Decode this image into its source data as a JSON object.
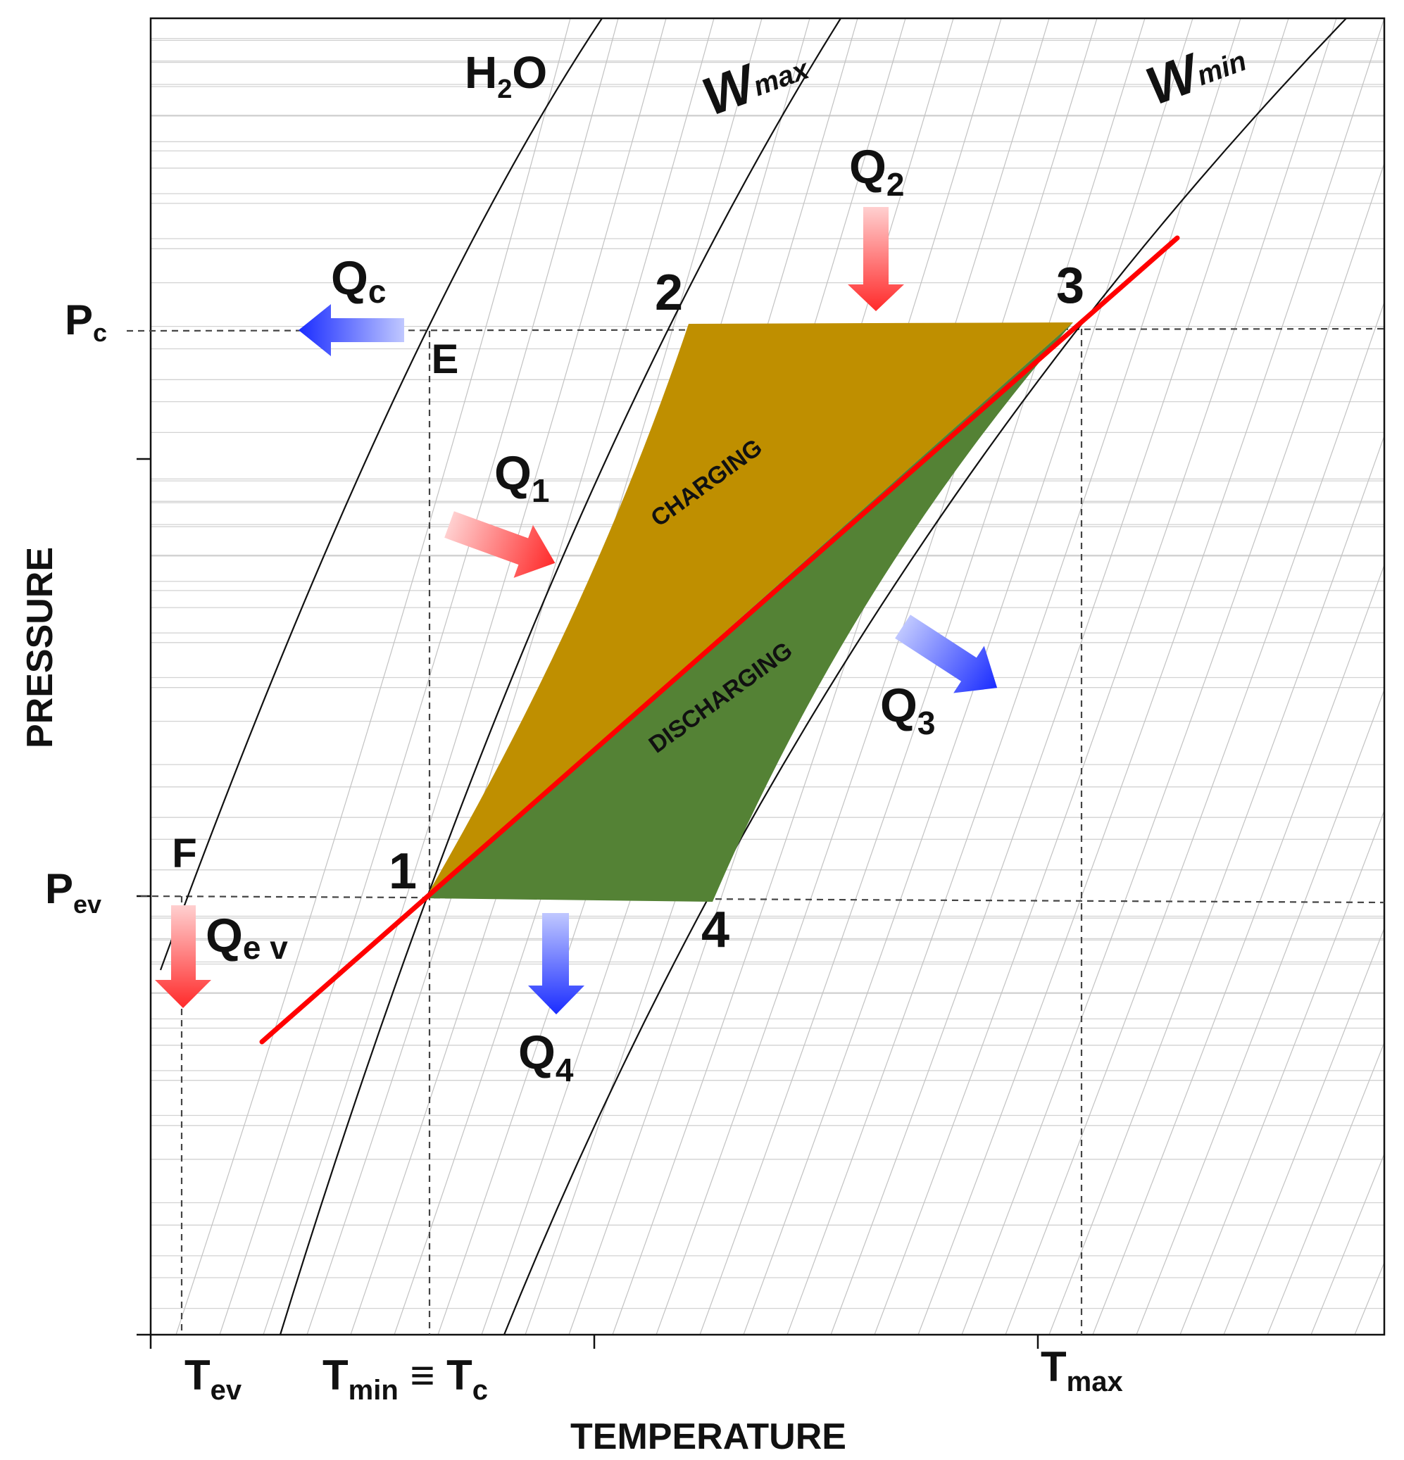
{
  "axes": {
    "x_label": "TEMPERATURE",
    "y_label": "PRESSURE",
    "x_ticks": [
      {
        "main": "T",
        "sub": "ev"
      },
      {
        "main": "T",
        "sub": "min",
        "rest": " ≡ T",
        "sub2": "c"
      },
      {
        "main": "T",
        "sub": "max"
      }
    ],
    "y_ticks": [
      {
        "main": "P",
        "sub": "c"
      },
      {
        "main": "P",
        "sub": "ev"
      }
    ]
  },
  "curves": {
    "h2o": {
      "main": "H",
      "sub": "2",
      "rest": "O"
    },
    "wmax": {
      "main": "W",
      "sub": "max"
    },
    "wmin": {
      "main": "W",
      "sub": "min"
    }
  },
  "points": {
    "p1": "1",
    "p2": "2",
    "p3": "3",
    "p4": "4",
    "e": "E",
    "f": "F"
  },
  "regions": {
    "charging": "CHARGING",
    "discharging": "DISCHARGING"
  },
  "heat_flows": {
    "q1": {
      "main": "Q",
      "sub": "1"
    },
    "q2": {
      "main": "Q",
      "sub": "2"
    },
    "q3": {
      "main": "Q",
      "sub": "3"
    },
    "q4": {
      "main": "Q",
      "sub": "4"
    },
    "qc": {
      "main": "Q",
      "sub": "c"
    },
    "qev": {
      "main": "Q",
      "sub": "e v"
    }
  },
  "colors": {
    "charging_fill": "#bf8f00",
    "discharging_fill": "#548235",
    "process_line": "#ff0000",
    "heat_in_arrow": "#ff5b5b",
    "heat_out_arrow": "#3b4cff"
  }
}
